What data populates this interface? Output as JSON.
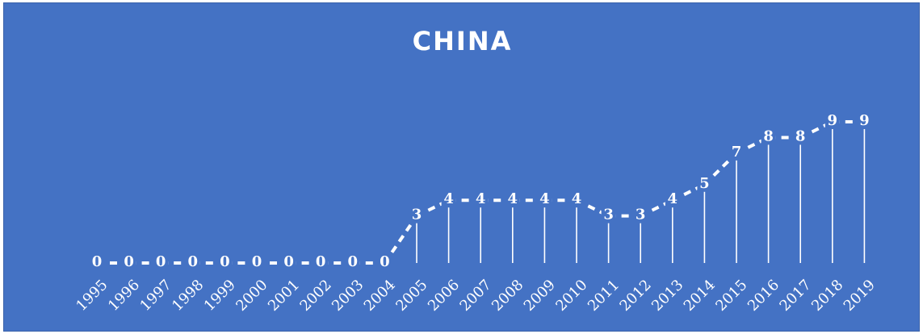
{
  "chart_data": {
    "type": "line",
    "title": "CHINA",
    "categories": [
      "1995",
      "1996",
      "1997",
      "1998",
      "1999",
      "2000",
      "2001",
      "2002",
      "2003",
      "2004",
      "2005",
      "2006",
      "2007",
      "2008",
      "2009",
      "2010",
      "2011",
      "2012",
      "2013",
      "2014",
      "2015",
      "2016",
      "2017",
      "2018",
      "2019"
    ],
    "values": [
      0,
      0,
      0,
      0,
      0,
      0,
      0,
      0,
      0,
      0,
      3,
      4,
      4,
      4,
      4,
      4,
      3,
      3,
      4,
      5,
      7,
      8,
      8,
      9,
      9
    ],
    "ylim": [
      0,
      9
    ],
    "grid": false,
    "drop_lines": true,
    "line_style": "dashed",
    "colors": {
      "background": "#4472c4",
      "foreground": "#ffffff"
    }
  }
}
